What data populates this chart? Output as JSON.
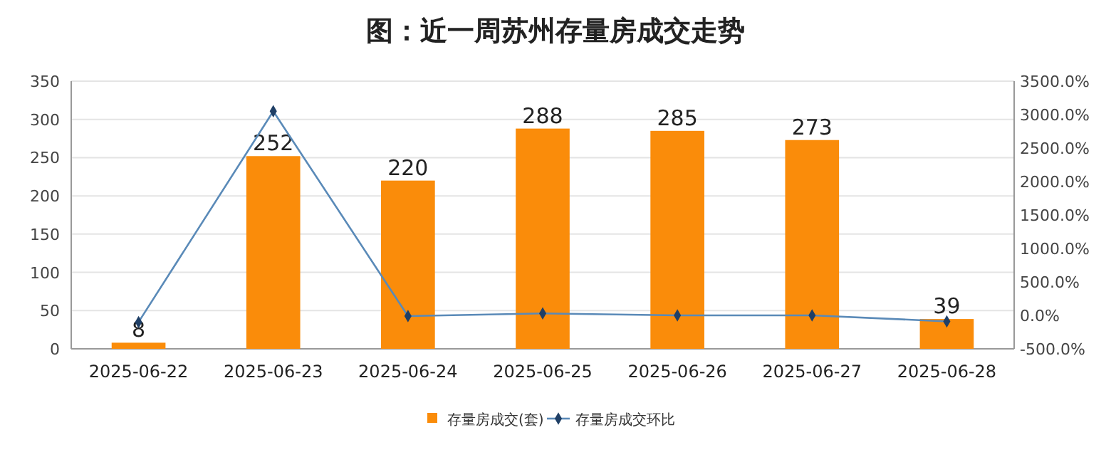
{
  "chart_data": {
    "type": "bar",
    "title": "图：近一周苏州存量房成交走势",
    "categories": [
      "2025-06-22",
      "2025-06-23",
      "2025-06-24",
      "2025-06-25",
      "2025-06-26",
      "2025-06-27",
      "2025-06-28"
    ],
    "series": [
      {
        "name": "存量房成交(套)",
        "color": "#fa8c0a",
        "values": [
          8,
          252,
          220,
          288,
          285,
          273,
          39
        ],
        "value_labels": [
          "8",
          "252",
          "220",
          "288",
          "285",
          "273",
          "39"
        ]
      },
      {
        "name": "存量房成交环比",
        "type": "line",
        "axis": "y2",
        "color": "#5a8ab8",
        "values": [
          -100,
          3050,
          -10,
          30,
          0,
          0,
          -90
        ],
        "marker": "diamond"
      }
    ],
    "ylim": [
      0,
      350
    ],
    "yticks": [
      0,
      50,
      100,
      150,
      200,
      250,
      300,
      350
    ],
    "y2lim": [
      -500,
      3500
    ],
    "y2ticks": [
      {
        "value": -500,
        "label": "-500.0%"
      },
      {
        "value": 0,
        "label": "0.0%"
      },
      {
        "value": 500,
        "label": "500.0%"
      },
      {
        "value": 1000,
        "label": "1000.0%"
      },
      {
        "value": 1500,
        "label": "1500.0%"
      },
      {
        "value": 2000,
        "label": "2000.0%"
      },
      {
        "value": 2500,
        "label": "2500.0%"
      },
      {
        "value": 3000,
        "label": "3000.0%"
      },
      {
        "value": 3500,
        "label": "3500.0%"
      }
    ],
    "grid": "y",
    "legend": "bottom"
  }
}
